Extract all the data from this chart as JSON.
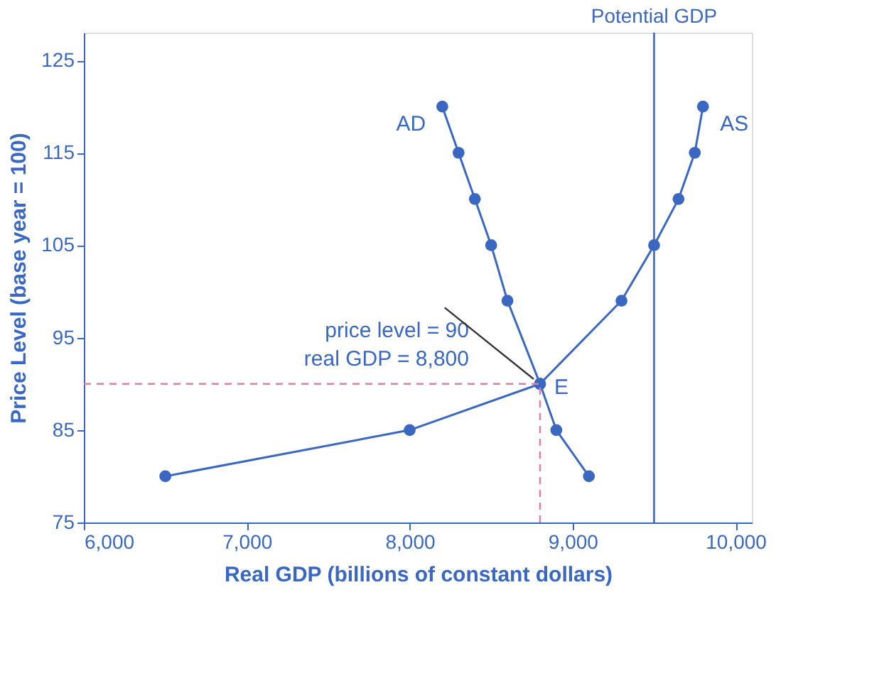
{
  "chart_data": {
    "type": "line",
    "xlabel": "Real GDP (billions of constant dollars)",
    "ylabel": "Price Level (base year = 100)",
    "xlim": [
      6000,
      10100
    ],
    "ylim": [
      75,
      128
    ],
    "xticks": [
      {
        "value": 6000,
        "label": "6,000"
      },
      {
        "value": 7000,
        "label": "7,000"
      },
      {
        "value": 8000,
        "label": "8,000"
      },
      {
        "value": 9000,
        "label": "9,000"
      },
      {
        "value": 10000,
        "label": "10,000"
      }
    ],
    "yticks": [
      75,
      85,
      95,
      105,
      115,
      125
    ],
    "series": [
      {
        "name": "AD",
        "color": "#3a67c2",
        "x": [
          8200,
          8300,
          8400,
          8500,
          8600,
          8800,
          8900,
          9100
        ],
        "values": [
          120,
          115,
          110,
          105,
          99,
          90,
          85,
          80
        ]
      },
      {
        "name": "AS",
        "color": "#3a67c2",
        "x": [
          6500,
          8000,
          8800,
          9300,
          9500,
          9650,
          9750,
          9800
        ],
        "values": [
          80,
          85,
          90,
          99,
          105,
          110,
          115,
          120
        ]
      }
    ],
    "marker": "circle",
    "line_style": "solid",
    "grid": false,
    "ref_lines": [
      {
        "axis": "x",
        "value": 9500,
        "label": "Potential GDP",
        "color": "#3a67c2"
      }
    ],
    "annotations": [
      {
        "text": "price level = 90\nreal GDP = 8,800",
        "x": 8800,
        "y": 90
      },
      {
        "text": "E",
        "x": 8800,
        "y": 90
      }
    ]
  }
}
